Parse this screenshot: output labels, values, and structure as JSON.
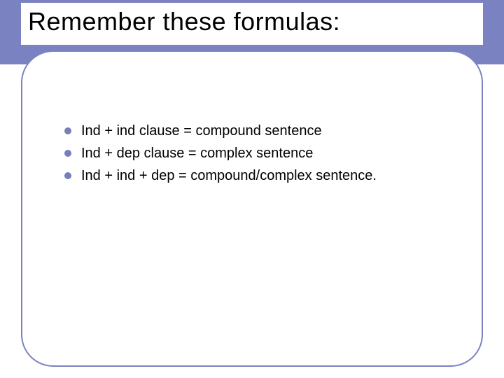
{
  "colors": {
    "band": "#7a82c2",
    "card_border": "#7a82c2",
    "bullet": "#777eb8",
    "text": "#000000",
    "background": "#ffffff"
  },
  "title": "Remember these formulas:",
  "title_fontsize": 36,
  "item_fontsize": 20,
  "bullets": [
    "Ind + ind clause = compound sentence",
    "Ind + dep clause = complex sentence",
    "Ind + ind + dep = compound/complex sentence."
  ]
}
